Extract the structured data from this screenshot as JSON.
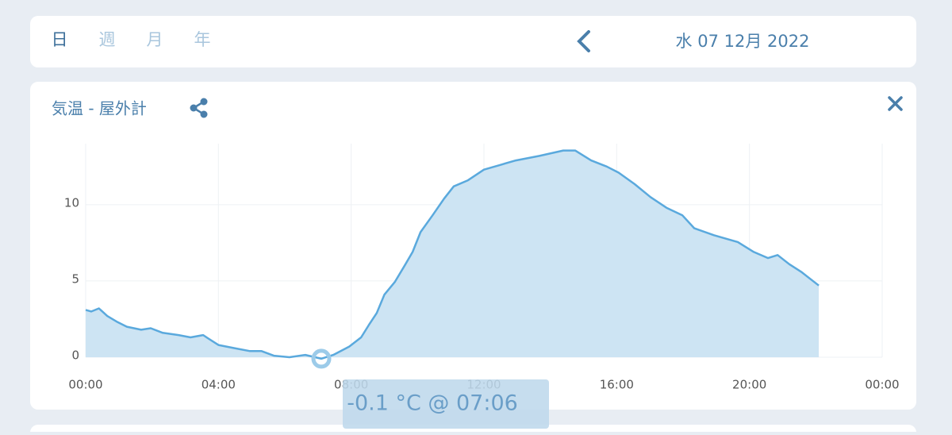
{
  "tabs": [
    "日",
    "週",
    "月",
    "年"
  ],
  "date": "水 07 12月 2022",
  "tooltip": "-0.1 °C @ 07:06",
  "chart_data": {
    "type": "area",
    "title": "気温 -  屋外計",
    "x": [
      0,
      0.17,
      0.4,
      0.65,
      0.96,
      1.24,
      1.67,
      1.96,
      2.32,
      2.8,
      3.16,
      3.54,
      3.68,
      4.0,
      4.47,
      4.95,
      5.3,
      5.67,
      6.14,
      6.62,
      7.1,
      7.46,
      7.94,
      8.3,
      8.53,
      8.77,
      9.0,
      9.32,
      9.61,
      9.85,
      10.09,
      10.45,
      10.8,
      11.09,
      11.52,
      12.0,
      12.48,
      12.96,
      13.67,
      14.39,
      14.75,
      15.23,
      15.7,
      16.06,
      16.54,
      17.02,
      17.5,
      17.98,
      18.34,
      18.93,
      19.65,
      20.13,
      20.56,
      20.85,
      21.2,
      21.56,
      22.09
    ],
    "y": [
      3.1,
      3.0,
      3.2,
      2.7,
      2.3,
      2.0,
      1.8,
      1.9,
      1.6,
      1.45,
      1.3,
      1.45,
      1.25,
      0.8,
      0.6,
      0.4,
      0.4,
      0.1,
      0.0,
      0.15,
      -0.1,
      0.15,
      0.7,
      1.3,
      2.1,
      2.9,
      4.1,
      4.95,
      6.0,
      6.9,
      8.2,
      9.3,
      10.4,
      11.2,
      11.6,
      12.3,
      12.6,
      12.9,
      13.2,
      13.55,
      13.55,
      12.9,
      12.5,
      12.1,
      11.35,
      10.5,
      9.8,
      9.3,
      8.45,
      8.0,
      7.55,
      6.9,
      6.5,
      6.7,
      6.1,
      5.6,
      4.7
    ],
    "marker": {
      "x": 7.1,
      "y": -0.1
    },
    "color": "#5aa9dd",
    "fill": "#cde4f3",
    "xlim": [
      0,
      24
    ],
    "xticks": [
      {
        "value": 0,
        "label": "00:00"
      },
      {
        "value": 4,
        "label": "04:00"
      },
      {
        "value": 8,
        "label": "08:00"
      },
      {
        "value": 12,
        "label": "12:00"
      },
      {
        "value": 16,
        "label": "16:00"
      },
      {
        "value": 20,
        "label": "20:00"
      },
      {
        "value": 24,
        "label": "00:00"
      }
    ],
    "ylim": [
      0,
      14
    ],
    "yticks": [
      0,
      5,
      10
    ],
    "grid": true
  }
}
